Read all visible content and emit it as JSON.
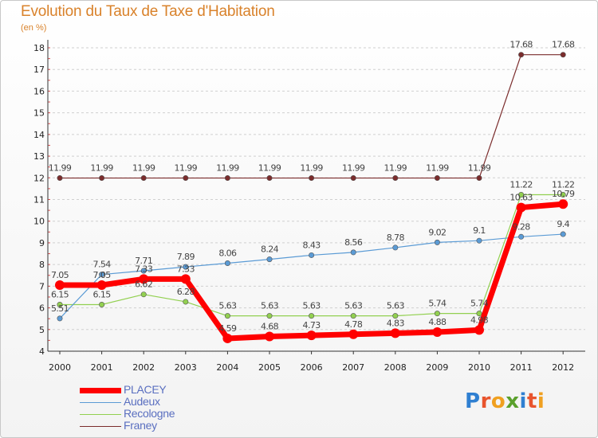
{
  "chart_data": {
    "type": "line",
    "title": "Evolution du Taux de Taxe d'Habitation",
    "unit_label": "(en %)",
    "x": [
      "2000",
      "2001",
      "2002",
      "2003",
      "2004",
      "2005",
      "2006",
      "2007",
      "2008",
      "2009",
      "2010",
      "2011",
      "2012"
    ],
    "ylim": [
      4,
      18
    ],
    "yticks": [
      4,
      5,
      6,
      7,
      8,
      9,
      10,
      11,
      12,
      13,
      14,
      15,
      16,
      17,
      18
    ],
    "grid": "horizontal-dashed",
    "legend_position": "bottom-left",
    "series": [
      {
        "name": "PLACEY",
        "color": "#ff0000",
        "values": [
          7.05,
          7.05,
          7.33,
          7.33,
          4.59,
          4.68,
          4.73,
          4.78,
          4.83,
          4.88,
          4.98,
          10.63,
          10.79
        ],
        "labels": [
          "7.05",
          "7.05",
          "7.33",
          "7.33",
          "4.59",
          "4.68",
          "4.73",
          "4.78",
          "4.83",
          "4.88",
          "4.98",
          "10.63",
          "10.79"
        ]
      },
      {
        "name": "Audeux",
        "color": "#5b9bd5",
        "values": [
          5.51,
          7.54,
          7.71,
          7.89,
          8.06,
          8.24,
          8.43,
          8.56,
          8.78,
          9.02,
          9.1,
          9.28,
          9.4
        ],
        "labels": [
          "5.51",
          "7.54",
          "7.71",
          "7.89",
          "8.06",
          "8.24",
          "8.43",
          "8.56",
          "8.78",
          "9.02",
          "9.1",
          "9.28",
          "9.4"
        ]
      },
      {
        "name": "Recologne",
        "color": "#92d050",
        "values": [
          6.15,
          6.15,
          6.62,
          6.28,
          5.63,
          5.63,
          5.63,
          5.63,
          5.63,
          5.74,
          5.74,
          11.22,
          11.22
        ],
        "labels": [
          "6.15",
          "6.15",
          "6.62",
          "6.28",
          "5.63",
          "5.63",
          "5.63",
          "5.63",
          "5.63",
          "5.74",
          "5.74",
          "11.22",
          "11.22"
        ]
      },
      {
        "name": "Franey",
        "color": "#7b2c2c",
        "values": [
          11.99,
          11.99,
          11.99,
          11.99,
          11.99,
          11.99,
          11.99,
          11.99,
          11.99,
          11.99,
          11.99,
          17.68,
          17.68
        ],
        "labels": [
          "11.99",
          "11.99",
          "11.99",
          "11.99",
          "11.99",
          "11.99",
          "11.99",
          "11.99",
          "11.99",
          "11.99",
          "11.99",
          "17.68",
          "17.68"
        ]
      }
    ]
  },
  "logo": {
    "letters": [
      "P",
      "r",
      "o",
      "x",
      "i",
      "t",
      "i"
    ]
  }
}
